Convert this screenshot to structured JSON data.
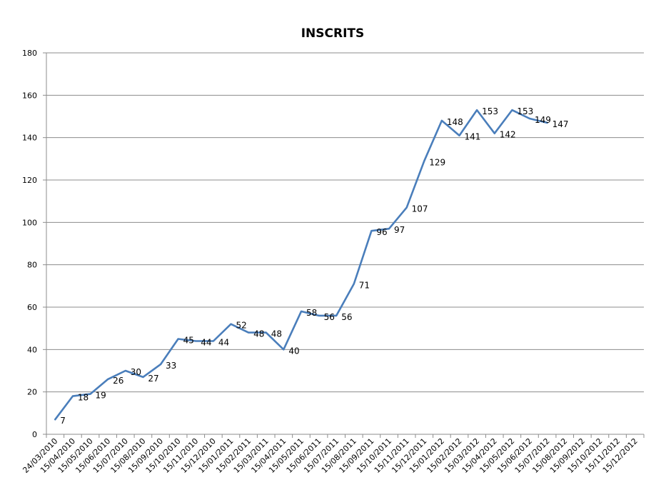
{
  "chart_data": {
    "type": "line",
    "title": "INSCRITS",
    "xlabel": "",
    "ylabel": "",
    "ylim": [
      0,
      180
    ],
    "yticks": [
      0,
      20,
      40,
      60,
      80,
      100,
      120,
      140,
      160,
      180
    ],
    "grid": true,
    "legend": "none",
    "categories": [
      "24/03/2010",
      "15/04/2010",
      "15/05/2010",
      "15/06/2010",
      "15/07/2010",
      "15/08/2010",
      "15/09/2010",
      "15/10/2010",
      "15/11/2010",
      "15/12/2010",
      "15/01/2011",
      "15/02/2011",
      "15/03/2011",
      "15/04/2011",
      "15/05/2011",
      "15/06/2011",
      "15/07/2011",
      "15/08/2011",
      "15/09/2011",
      "15/10/2011",
      "15/11/2011",
      "15/12/2011",
      "15/01/2012",
      "15/02/2012",
      "15/03/2012",
      "15/04/2012",
      "15/05/2012",
      "15/06/2012",
      "15/07/2012",
      "15/08/2012",
      "15/09/2012",
      "15/10/2012",
      "15/11/2012",
      "15/12/2012"
    ],
    "series": [
      {
        "values": [
          7,
          18,
          19,
          26,
          30,
          27,
          33,
          45,
          44,
          44,
          52,
          48,
          48,
          40,
          58,
          56,
          56,
          71,
          96,
          97,
          107,
          129,
          148,
          141,
          153,
          142,
          153,
          149,
          147,
          null,
          null,
          null,
          null,
          null
        ],
        "color": "#4a7ebb"
      }
    ]
  }
}
